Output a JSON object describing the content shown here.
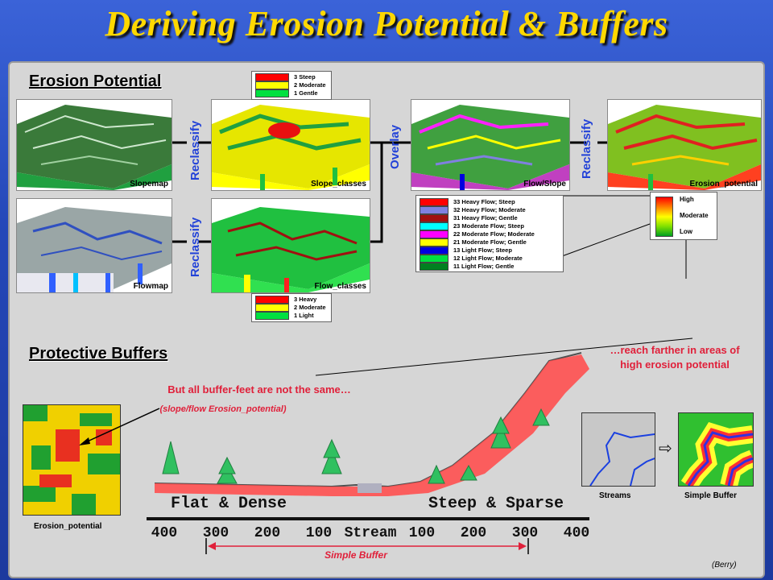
{
  "title": "Deriving Erosion Potential & Buffers",
  "erosion_section": {
    "header": "Erosion Potential",
    "maps": {
      "slopemap": "Slopemap",
      "flowmap": "Flowmap",
      "slope_classes": "Slope_classes",
      "flow_classes": "Flow_classes",
      "flow_slope": "Flow/Slope",
      "erosion_potential": "Erosion_potential"
    },
    "operations": {
      "reclassify_slope": "Reclassify",
      "reclassify_flow": "Reclassify",
      "overlay": "Overlay",
      "reclassify_final": "Reclassify"
    },
    "slope_legend": [
      {
        "label": "3 Steep",
        "color": "#ff0000"
      },
      {
        "label": "2 Moderate",
        "color": "#ffff00"
      },
      {
        "label": "1 Gentle",
        "color": "#00e040"
      }
    ],
    "flow_legend": [
      {
        "label": "3  Heavy",
        "color": "#ff0000"
      },
      {
        "label": "2  Moderate",
        "color": "#ffff00"
      },
      {
        "label": "1  Light",
        "color": "#00e040"
      }
    ],
    "flowslope_legend": [
      {
        "label": "33 Heavy Flow; Steep",
        "color": "#ff0000"
      },
      {
        "label": "32 Heavy Flow; Moderate",
        "color": "#8080e0"
      },
      {
        "label": "31 Heavy Flow; Gentle",
        "color": "#a01010"
      },
      {
        "label": "23 Moderate Flow; Steep",
        "color": "#00ffff"
      },
      {
        "label": "22 Moderate Flow; Moderate",
        "color": "#ff00ff"
      },
      {
        "label": "21 Moderate Flow; Gentle",
        "color": "#ffff00"
      },
      {
        "label": "13 Light Flow; Steep",
        "color": "#0000e0"
      },
      {
        "label": "12 Light Flow; Moderate",
        "color": "#00e040"
      },
      {
        "label": "11 Light Flow; Gentle",
        "color": "#008020"
      }
    ],
    "erosion_legend": {
      "high": "High",
      "moderate": "Moderate",
      "low": "Low"
    }
  },
  "buffer_section": {
    "header": "Protective Buffers",
    "note_main": "But all buffer-feet are not the same…",
    "note_sub": "(slope/flow Erosion_potential)",
    "reach_note": "…reach farther in areas of high erosion potential",
    "erosion_map_caption": "Erosion_potential",
    "flat_label": "Flat & Dense",
    "steep_label": "Steep & Sparse",
    "stream_label": "Stream",
    "axis_ticks": [
      "400",
      "300",
      "200",
      "100",
      "Stream",
      "100",
      "200",
      "300",
      "400"
    ],
    "simple_buffer_label": "Simple Buffer",
    "streams_caption": "Streams",
    "simple_buffer_caption": "Simple Buffer",
    "credit": "(Berry)"
  },
  "colors": {
    "title": "#ffd800",
    "op_label": "#2242d8",
    "note": "#e0203a",
    "buffer": "#ff5050"
  }
}
